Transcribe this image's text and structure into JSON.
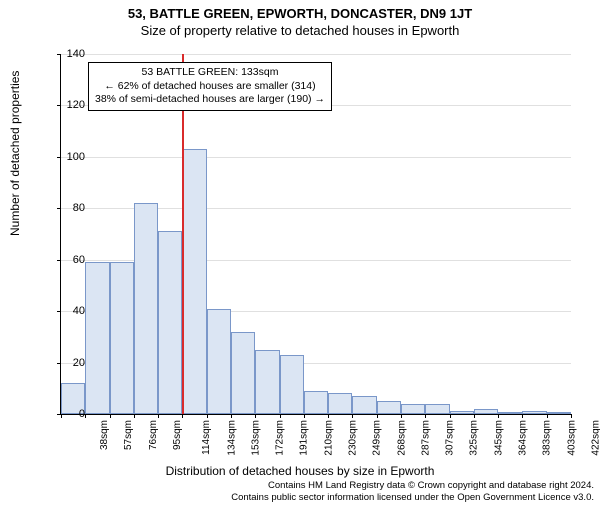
{
  "header": {
    "address": "53, BATTLE GREEN, EPWORTH, DONCASTER, DN9 1JT",
    "subtitle": "Size of property relative to detached houses in Epworth"
  },
  "chart": {
    "type": "histogram",
    "ylabel": "Number of detached properties",
    "xlabel": "Distribution of detached houses by size in Epworth",
    "ylim": [
      0,
      140
    ],
    "ytick_step": 20,
    "yticks": [
      0,
      20,
      40,
      60,
      80,
      100,
      120,
      140
    ],
    "background_color": "#ffffff",
    "grid_color": "#e0e0e0",
    "bar_fill": "#dbe5f3",
    "bar_border": "#7a97c9",
    "reference_line_color": "#d92b2b",
    "reference_x_index": 5,
    "label_fontsize": 12,
    "tick_fontsize": 11,
    "bins": [
      {
        "label": "38sqm",
        "value": 12
      },
      {
        "label": "57sqm",
        "value": 59
      },
      {
        "label": "76sqm",
        "value": 59
      },
      {
        "label": "95sqm",
        "value": 82
      },
      {
        "label": "114sqm",
        "value": 71
      },
      {
        "label": "134sqm",
        "value": 103
      },
      {
        "label": "153sqm",
        "value": 41
      },
      {
        "label": "172sqm",
        "value": 32
      },
      {
        "label": "191sqm",
        "value": 25
      },
      {
        "label": "210sqm",
        "value": 23
      },
      {
        "label": "230sqm",
        "value": 9
      },
      {
        "label": "249sqm",
        "value": 8
      },
      {
        "label": "268sqm",
        "value": 7
      },
      {
        "label": "287sqm",
        "value": 5
      },
      {
        "label": "307sqm",
        "value": 4
      },
      {
        "label": "325sqm",
        "value": 4
      },
      {
        "label": "345sqm",
        "value": 1
      },
      {
        "label": "364sqm",
        "value": 2
      },
      {
        "label": "383sqm",
        "value": 0
      },
      {
        "label": "403sqm",
        "value": 1
      },
      {
        "label": "422sqm",
        "value": 0
      }
    ],
    "annotation": {
      "line1": "53 BATTLE GREEN: 133sqm",
      "line2": "← 62% of detached houses are smaller (314)",
      "line3": "38% of semi-detached houses are larger (190) →"
    }
  },
  "footer": {
    "line1": "Contains HM Land Registry data © Crown copyright and database right 2024.",
    "line2": "Contains public sector information licensed under the Open Government Licence v3.0."
  }
}
